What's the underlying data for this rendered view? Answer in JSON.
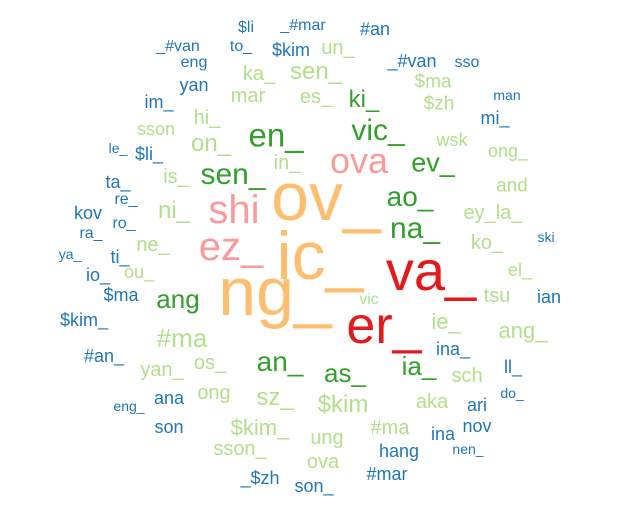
{
  "palette": {
    "orange": "#fdbf6f",
    "red": "#e31a1c",
    "pink": "#fb9a99",
    "green": "#33a02c",
    "lightgreen": "#b2df8a",
    "blue": "#1f78b4"
  },
  "words": [
    {
      "text": "ov_",
      "color": "orange"
    },
    {
      "text": "ic_",
      "color": "orange"
    },
    {
      "text": "ng_",
      "color": "orange"
    },
    {
      "text": "va_",
      "color": "red"
    },
    {
      "text": "er_",
      "color": "red"
    },
    {
      "text": "shi",
      "color": "pink"
    },
    {
      "text": "ez_",
      "color": "pink"
    },
    {
      "text": "ova",
      "color": "pink"
    },
    {
      "text": "en_",
      "color": "green"
    },
    {
      "text": "vic_",
      "color": "green"
    },
    {
      "text": "sen_",
      "color": "green"
    },
    {
      "text": "ev_",
      "color": "green"
    },
    {
      "text": "ao_",
      "color": "green"
    },
    {
      "text": "na_",
      "color": "green"
    },
    {
      "text": "ang",
      "color": "green"
    },
    {
      "text": "an_",
      "color": "green"
    },
    {
      "text": "as_",
      "color": "green"
    },
    {
      "text": "ia_",
      "color": "green"
    },
    {
      "text": "sen_",
      "color": "lightgreen"
    },
    {
      "text": "ki_",
      "color": "green"
    },
    {
      "text": "ka_",
      "color": "lightgreen"
    },
    {
      "text": "mar",
      "color": "lightgreen"
    },
    {
      "text": "es_",
      "color": "lightgreen"
    },
    {
      "text": "un_",
      "color": "lightgreen"
    },
    {
      "text": "$ma",
      "color": "lightgreen"
    },
    {
      "text": "$zh",
      "color": "lightgreen"
    },
    {
      "text": "hi_",
      "color": "lightgreen"
    },
    {
      "text": "on_",
      "color": "lightgreen"
    },
    {
      "text": "in_",
      "color": "lightgreen"
    },
    {
      "text": "is_",
      "color": "lightgreen"
    },
    {
      "text": "ni_",
      "color": "lightgreen"
    },
    {
      "text": "ne_",
      "color": "lightgreen"
    },
    {
      "text": "ou_",
      "color": "lightgreen"
    },
    {
      "text": "sson",
      "color": "lightgreen"
    },
    {
      "text": "wsk",
      "color": "lightgreen"
    },
    {
      "text": "ong_",
      "color": "lightgreen"
    },
    {
      "text": "and",
      "color": "lightgreen"
    },
    {
      "text": "ey_la_",
      "color": "lightgreen"
    },
    {
      "text": "ko_",
      "color": "lightgreen"
    },
    {
      "text": "el_",
      "color": "lightgreen"
    },
    {
      "text": "tsu",
      "color": "lightgreen"
    },
    {
      "text": "ie_",
      "color": "lightgreen"
    },
    {
      "text": "ang_",
      "color": "lightgreen"
    },
    {
      "text": "vic",
      "color": "lightgreen"
    },
    {
      "text": "#ma",
      "color": "lightgreen"
    },
    {
      "text": "yan_",
      "color": "lightgreen"
    },
    {
      "text": "os_",
      "color": "lightgreen"
    },
    {
      "text": "ong",
      "color": "lightgreen"
    },
    {
      "text": "sz_",
      "color": "lightgreen"
    },
    {
      "text": "$kim",
      "color": "lightgreen"
    },
    {
      "text": "aka",
      "color": "lightgreen"
    },
    {
      "text": "sch",
      "color": "lightgreen"
    },
    {
      "text": "$kim_",
      "color": "lightgreen"
    },
    {
      "text": "ung",
      "color": "lightgreen"
    },
    {
      "text": "#ma",
      "color": "lightgreen"
    },
    {
      "text": "sson_",
      "color": "lightgreen"
    },
    {
      "text": "ova",
      "color": "lightgreen"
    },
    {
      "text": "$li",
      "color": "blue"
    },
    {
      "text": "_#mar",
      "color": "blue"
    },
    {
      "text": "#an",
      "color": "blue"
    },
    {
      "text": "_#van",
      "color": "blue"
    },
    {
      "text": "to_",
      "color": "blue"
    },
    {
      "text": "$kim",
      "color": "blue"
    },
    {
      "text": "eng",
      "color": "blue"
    },
    {
      "text": "_#van",
      "color": "blue"
    },
    {
      "text": "sso",
      "color": "blue"
    },
    {
      "text": "yan",
      "color": "blue"
    },
    {
      "text": "im_",
      "color": "blue"
    },
    {
      "text": "man",
      "color": "blue"
    },
    {
      "text": "mi_",
      "color": "blue"
    },
    {
      "text": "le_",
      "color": "blue"
    },
    {
      "text": "$li_",
      "color": "blue"
    },
    {
      "text": "ta_",
      "color": "blue"
    },
    {
      "text": "re_",
      "color": "blue"
    },
    {
      "text": "kov",
      "color": "blue"
    },
    {
      "text": "ro_",
      "color": "blue"
    },
    {
      "text": "ra_",
      "color": "blue"
    },
    {
      "text": "ski",
      "color": "blue"
    },
    {
      "text": "ya_",
      "color": "blue"
    },
    {
      "text": "ti_",
      "color": "blue"
    },
    {
      "text": "io_",
      "color": "blue"
    },
    {
      "text": "$ma",
      "color": "blue"
    },
    {
      "text": "ian",
      "color": "blue"
    },
    {
      "text": "$kim_",
      "color": "blue"
    },
    {
      "text": "ina_",
      "color": "blue"
    },
    {
      "text": "#an_",
      "color": "blue"
    },
    {
      "text": "ll_",
      "color": "blue"
    },
    {
      "text": "do_",
      "color": "blue"
    },
    {
      "text": "eng_",
      "color": "blue"
    },
    {
      "text": "ana",
      "color": "blue"
    },
    {
      "text": "ari",
      "color": "blue"
    },
    {
      "text": "nov",
      "color": "blue"
    },
    {
      "text": "son",
      "color": "blue"
    },
    {
      "text": "ina",
      "color": "blue"
    },
    {
      "text": "hang",
      "color": "blue"
    },
    {
      "text": "nen_",
      "color": "blue"
    },
    {
      "text": "_$zh",
      "color": "blue"
    },
    {
      "text": "son_",
      "color": "blue"
    },
    {
      "text": "#mar",
      "color": "blue"
    }
  ]
}
